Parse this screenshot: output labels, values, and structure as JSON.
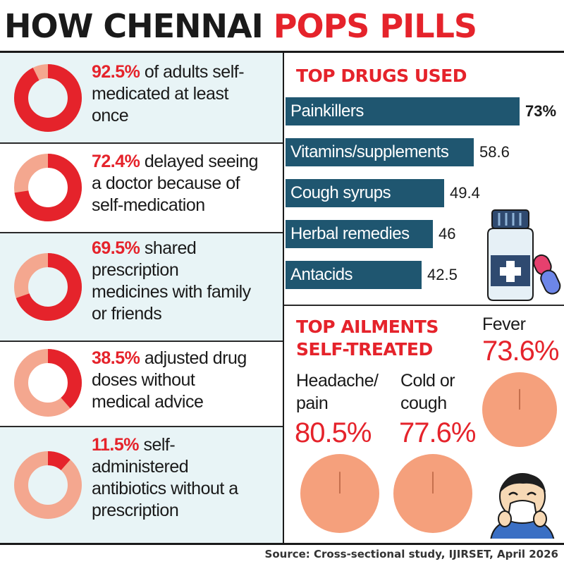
{
  "header": {
    "title_part1": "HOW CHENNAI",
    "title_part2": "POPS PILLS"
  },
  "colors": {
    "accent_red": "#e5232b",
    "donut_light": "#f4a78f",
    "bar_teal": "#1f5670",
    "pie_peach": "#f5a07c",
    "panel_tint": "#e8f4f6",
    "text_dark": "#1a1a1a"
  },
  "stats": [
    {
      "pct": "92.5%",
      "text": "of adults self-medicated at least once",
      "line1_rest": " of adults self-",
      "lines": [
        "medicated at least",
        "once"
      ]
    },
    {
      "pct": "72.4%",
      "text": "delayed seeing a doctor because of self-medication",
      "line1_rest": " delayed seeing",
      "lines": [
        "a doctor because of",
        "self-medication"
      ]
    },
    {
      "pct": "69.5%",
      "text": "shared prescription medicines with family or friends",
      "line1_rest": " shared",
      "lines": [
        "prescription",
        "medicines with family",
        "or friends"
      ]
    },
    {
      "pct": "38.5%",
      "text": "adjusted drug doses without medical advice",
      "line1_rest": " adjusted drug",
      "lines": [
        "doses without",
        "medical advice"
      ]
    },
    {
      "pct": "11.5%",
      "text": "self-administered antibiotics without a prescription",
      "line1_rest": " self-",
      "lines": [
        "administered",
        "antibiotics without a",
        "prescription"
      ]
    }
  ],
  "drugs": {
    "title": "TOP DRUGS USED",
    "items": [
      {
        "name": "Painkillers",
        "value_label": "73%",
        "bold": true
      },
      {
        "name": "Vitamins/supplements",
        "value_label": "58.6",
        "bold": false
      },
      {
        "name": "Cough syrups",
        "value_label": "49.4",
        "bold": false
      },
      {
        "name": "Herbal remedies",
        "value_label": "46",
        "bold": false
      },
      {
        "name": "Antacids",
        "value_label": "42.5",
        "bold": false
      }
    ]
  },
  "ailments": {
    "title_line1": "TOP AILMENTS",
    "title_line2": "SELF-TREATED",
    "items": [
      {
        "label_line1": "Headache/",
        "label_line2": "pain",
        "value_label": "80.5%"
      },
      {
        "label_line1": "Cold or",
        "label_line2": "cough",
        "value_label": "77.6%"
      },
      {
        "label_line1": "Fever",
        "label_line2": "",
        "value_label": "73.6%"
      }
    ]
  },
  "source": "Source: Cross-sectional study, IJIRSET, April 2026",
  "chart_data": [
    {
      "type": "pie",
      "title": "",
      "categories": [
        "of adults self-medicated at least once",
        "delayed seeing a doctor because of self-medication",
        "shared prescription medicines with family or friends",
        "adjusted drug doses without medical advice",
        "self-administered antibiotics without a prescription"
      ],
      "values": [
        92.5,
        72.4,
        69.5,
        38.5,
        11.5
      ]
    },
    {
      "type": "bar",
      "title": "TOP DRUGS USED",
      "categories": [
        "Painkillers",
        "Vitamins/supplements",
        "Cough syrups",
        "Herbal remedies",
        "Antacids"
      ],
      "values": [
        73,
        58.6,
        49.4,
        46,
        42.5
      ],
      "xlabel": "",
      "ylabel": ""
    },
    {
      "type": "pie",
      "title": "TOP AILMENTS SELF-TREATED",
      "categories": [
        "Headache/pain",
        "Cold or cough",
        "Fever"
      ],
      "values": [
        80.5,
        77.6,
        73.6
      ]
    }
  ]
}
